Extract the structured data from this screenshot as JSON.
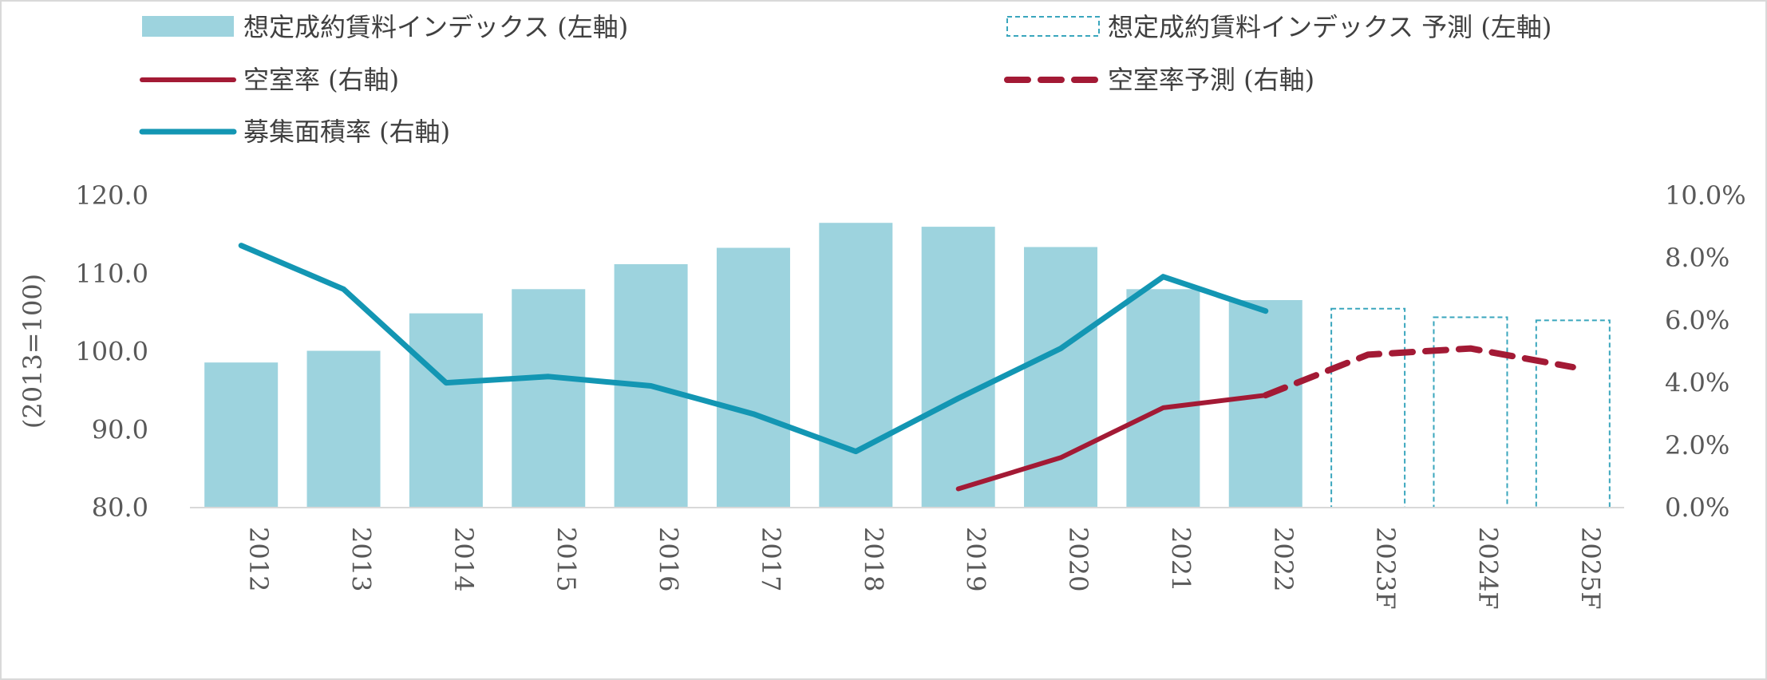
{
  "legend": {
    "rent_index": "想定成約賃料インデックス (左軸)",
    "rent_index_forecast": "想定成約賃料インデックス 予測 (左軸)",
    "vacancy": "空室率 (右軸)",
    "vacancy_forecast": "空室率予測 (右軸)",
    "recruiting": "募集面積率 (右軸)"
  },
  "colors": {
    "bar": "#9dd3de",
    "bar_forecast_border": "#3aa6bd",
    "vacancy": "#a31a35",
    "recruiting": "#1396b3",
    "axis": "#d9d9d9",
    "text": "#595959"
  },
  "chart_data": {
    "type": "bar",
    "categories": [
      "2012",
      "2013",
      "2014",
      "2015",
      "2016",
      "2017",
      "2018",
      "2019",
      "2020",
      "2021",
      "2022",
      "2023F",
      "2024F",
      "2025F"
    ],
    "ylabel": "(2013=100)",
    "ylim": [
      80,
      120
    ],
    "y2lim": [
      0,
      10
    ],
    "y_ticks": [
      "80.0",
      "90.0",
      "100.0",
      "110.0",
      "120.0"
    ],
    "y2_ticks": [
      "0.0%",
      "2.0%",
      "4.0%",
      "6.0%",
      "8.0%",
      "10.0%"
    ],
    "series": [
      {
        "name": "想定成約賃料インデックス (左軸)",
        "type": "bar",
        "axis": "left",
        "values": [
          98.6,
          100.1,
          104.9,
          108.0,
          111.2,
          113.3,
          116.5,
          116.0,
          113.4,
          108.0,
          106.6,
          null,
          null,
          null
        ]
      },
      {
        "name": "想定成約賃料インデックス 予測 (左軸)",
        "type": "bar",
        "axis": "left",
        "style": "dashed-outline",
        "values": [
          null,
          null,
          null,
          null,
          null,
          null,
          null,
          null,
          null,
          null,
          null,
          105.5,
          104.4,
          104.0
        ]
      },
      {
        "name": "空室率 (右軸)",
        "type": "line",
        "axis": "right",
        "values": [
          null,
          null,
          null,
          null,
          null,
          null,
          null,
          0.6,
          1.6,
          3.2,
          3.6,
          null,
          null,
          null
        ]
      },
      {
        "name": "空室率予測 (右軸)",
        "type": "line",
        "axis": "right",
        "style": "dashed",
        "values": [
          null,
          null,
          null,
          null,
          null,
          null,
          null,
          null,
          null,
          null,
          3.6,
          4.9,
          5.1,
          4.5
        ]
      },
      {
        "name": "募集面積率 (右軸)",
        "type": "line",
        "axis": "right",
        "values": [
          8.4,
          7.0,
          4.0,
          4.2,
          3.9,
          3.0,
          1.8,
          3.5,
          5.1,
          7.4,
          6.3,
          null,
          null,
          null
        ]
      }
    ],
    "legend_position": "top"
  }
}
